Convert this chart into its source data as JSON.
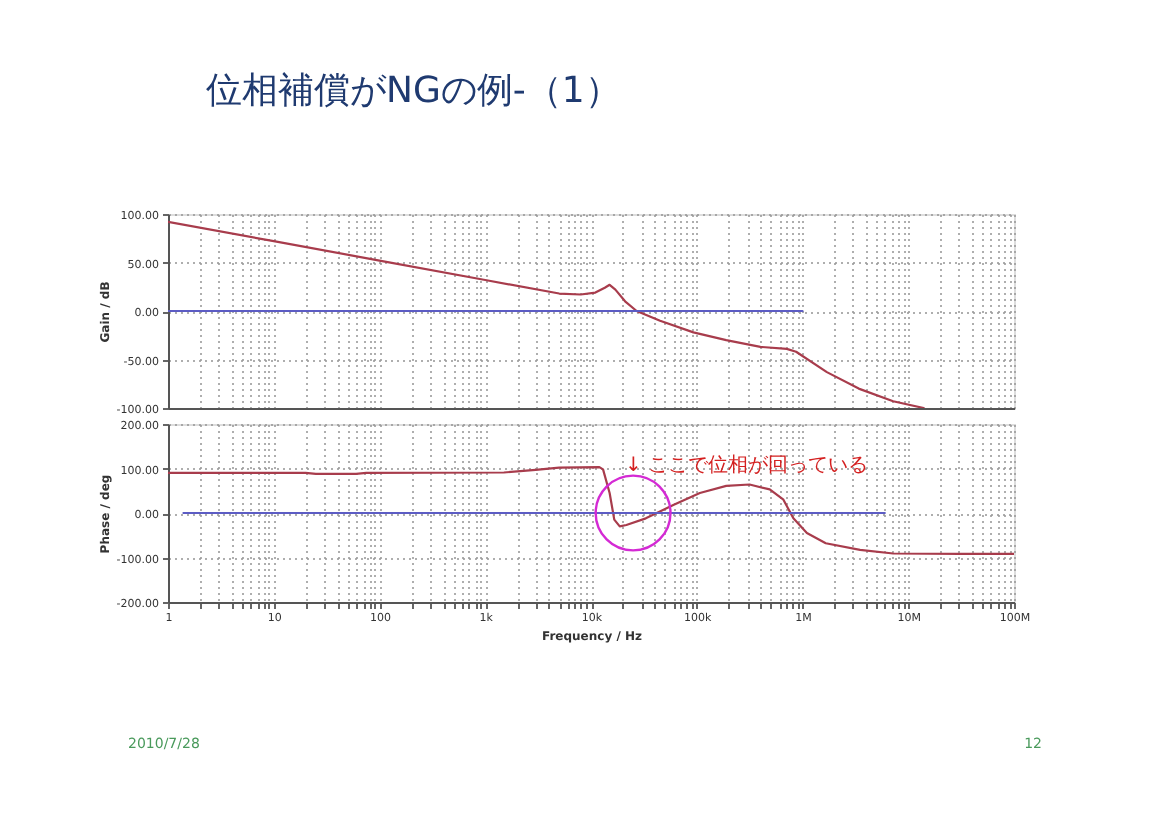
{
  "chart_data": [
    {
      "type": "line",
      "title": "位相補償がNGの例-（1）",
      "ylabel": "Gain / dB",
      "log": "x",
      "xlim": [
        1,
        100000000
      ],
      "xticks": [
        1,
        2,
        3,
        4,
        5,
        6,
        7,
        8,
        9,
        10,
        20,
        30,
        40,
        50,
        60,
        70,
        80,
        90,
        100,
        200,
        300,
        400,
        500,
        600,
        700,
        800,
        900,
        1000,
        2000,
        3000,
        4000,
        5000,
        6000,
        7000,
        8000,
        9000,
        10000,
        20000,
        30000,
        40000,
        50000,
        60000,
        70000,
        80000,
        90000,
        100000,
        200000,
        300000,
        400000,
        500000,
        600000,
        700000,
        800000,
        900000,
        1000000,
        2000000,
        3000000,
        4000000,
        5000000,
        6000000,
        7000000,
        8000000,
        9000000,
        10000000,
        20000000,
        30000000,
        40000000,
        50000000,
        60000000,
        70000000,
        80000000,
        90000000,
        100000000
      ],
      "ylim": [
        -100,
        100
      ],
      "yticks": [
        {
          "value": 100,
          "label": "100.00"
        },
        {
          "value": 50,
          "label": "50.00"
        },
        {
          "value": 0,
          "label": "0.00"
        },
        {
          "value": -50,
          "label": "-50.00"
        },
        {
          "value": -100,
          "label": "-100.00"
        }
      ],
      "tick_labels": "y",
      "grid": true,
      "series": [
        {
          "color": "#a83c4c",
          "x": [
            1,
            10,
            100,
            1000,
            5000,
            8000,
            11000,
            13500,
            15000,
            17000,
            21000,
            27000,
            45000,
            93000,
            190000,
            400000,
            710000,
            870000,
            1700000,
            3400000,
            7200000,
            14000000
          ],
          "values": [
            92,
            72,
            52,
            32,
            18,
            17,
            19,
            24,
            27,
            22,
            10,
            0,
            -10,
            -22,
            -30,
            -37,
            -39,
            -42,
            -63,
            -80,
            -93,
            -100
          ]
        },
        {
          "color": "#5c5cc4",
          "x": [
            1,
            1000000
          ],
          "values": [
            0,
            0
          ]
        }
      ]
    },
    {
      "type": "line",
      "xlabel": "Frequency / Hz",
      "ylabel": "Phase / deg",
      "log": "x",
      "xlim": [
        1,
        100000000
      ],
      "xticks": [
        1,
        {
          "value": 2,
          "label": null
        },
        {
          "value": 3,
          "label": null
        },
        {
          "value": 4,
          "label": null
        },
        {
          "value": 5,
          "label": null
        },
        {
          "value": 6,
          "label": null
        },
        {
          "value": 7,
          "label": null
        },
        {
          "value": 8,
          "label": null
        },
        {
          "value": 9,
          "label": null
        },
        10,
        {
          "value": 20,
          "label": null
        },
        {
          "value": 30,
          "label": null
        },
        {
          "value": 40,
          "label": null
        },
        {
          "value": 50,
          "label": null
        },
        {
          "value": 60,
          "label": null
        },
        {
          "value": 70,
          "label": null
        },
        {
          "value": 80,
          "label": null
        },
        {
          "value": 90,
          "label": null
        },
        100,
        {
          "value": 200,
          "label": null
        },
        {
          "value": 300,
          "label": null
        },
        {
          "value": 400,
          "label": null
        },
        {
          "value": 500,
          "label": null
        },
        {
          "value": 600,
          "label": null
        },
        {
          "value": 700,
          "label": null
        },
        {
          "value": 800,
          "label": null
        },
        {
          "value": 900,
          "label": null
        },
        {
          "value": 1000,
          "label": "1k"
        },
        {
          "value": 2000,
          "label": null
        },
        {
          "value": 3000,
          "label": null
        },
        {
          "value": 4000,
          "label": null
        },
        {
          "value": 5000,
          "label": null
        },
        {
          "value": 6000,
          "label": null
        },
        {
          "value": 7000,
          "label": null
        },
        {
          "value": 8000,
          "label": null
        },
        {
          "value": 9000,
          "label": null
        },
        {
          "value": 10000,
          "label": "10k"
        },
        {
          "value": 20000,
          "label": null
        },
        {
          "value": 30000,
          "label": null
        },
        {
          "value": 40000,
          "label": null
        },
        {
          "value": 50000,
          "label": null
        },
        {
          "value": 60000,
          "label": null
        },
        {
          "value": 70000,
          "label": null
        },
        {
          "value": 80000,
          "label": null
        },
        {
          "value": 90000,
          "label": null
        },
        {
          "value": 100000,
          "label": "100k"
        },
        {
          "value": 200000,
          "label": null
        },
        {
          "value": 300000,
          "label": null
        },
        {
          "value": 400000,
          "label": null
        },
        {
          "value": 500000,
          "label": null
        },
        {
          "value": 600000,
          "label": null
        },
        {
          "value": 700000,
          "label": null
        },
        {
          "value": 800000,
          "label": null
        },
        {
          "value": 900000,
          "label": null
        },
        {
          "value": 1000000,
          "label": "1M"
        },
        {
          "value": 2000000,
          "label": null
        },
        {
          "value": 3000000,
          "label": null
        },
        {
          "value": 4000000,
          "label": null
        },
        {
          "value": 5000000,
          "label": null
        },
        {
          "value": 6000000,
          "label": null
        },
        {
          "value": 7000000,
          "label": null
        },
        {
          "value": 8000000,
          "label": null
        },
        {
          "value": 9000000,
          "label": null
        },
        {
          "value": 10000000,
          "label": "10M"
        },
        {
          "value": 20000000,
          "label": null
        },
        {
          "value": 30000000,
          "label": null
        },
        {
          "value": 40000000,
          "label": null
        },
        {
          "value": 50000000,
          "label": null
        },
        {
          "value": 60000000,
          "label": null
        },
        {
          "value": 70000000,
          "label": null
        },
        {
          "value": 80000000,
          "label": null
        },
        {
          "value": 90000000,
          "label": null
        },
        {
          "value": 100000000,
          "label": "100M"
        }
      ],
      "ylim": [
        -200,
        200
      ],
      "yticks": [
        {
          "value": 200,
          "label": "200.00"
        },
        {
          "value": 100,
          "label": "100.00"
        },
        {
          "value": 0,
          "label": "0.00"
        },
        {
          "value": -100,
          "label": "-100.00"
        },
        {
          "value": -200,
          "label": "-200.00"
        }
      ],
      "grid": true,
      "series": [
        {
          "color": "#a83c4c",
          "x": [
            1,
            20,
            25,
            60,
            75,
            1500,
            3000,
            5000,
            12000,
            13000,
            15000,
            16600,
            18700,
            21600,
            33000,
            60000,
            107000,
            190000,
            316000,
            490000,
            660000,
            820000,
            1100000,
            1660000,
            3500000,
            7200000,
            31000000,
            100000000
          ],
          "values": [
            90,
            90,
            88,
            88,
            90,
            91,
            97,
            102,
            103,
            98,
            45,
            -15,
            -30,
            -27,
            -12,
            18,
            45,
            61,
            64,
            53,
            30,
            -12,
            -45,
            -68,
            -83,
            -91,
            -92,
            -92
          ]
        },
        {
          "color": "#5c5cc4",
          "x": [
            1.4,
            6000000
          ],
          "values": [
            0,
            0
          ]
        }
      ],
      "annotations": [
        {
          "text": "↓ ここで位相が回っている",
          "x": 25000,
          "y": 0
        },
        "2010/7/28",
        "12"
      ]
    }
  ]
}
